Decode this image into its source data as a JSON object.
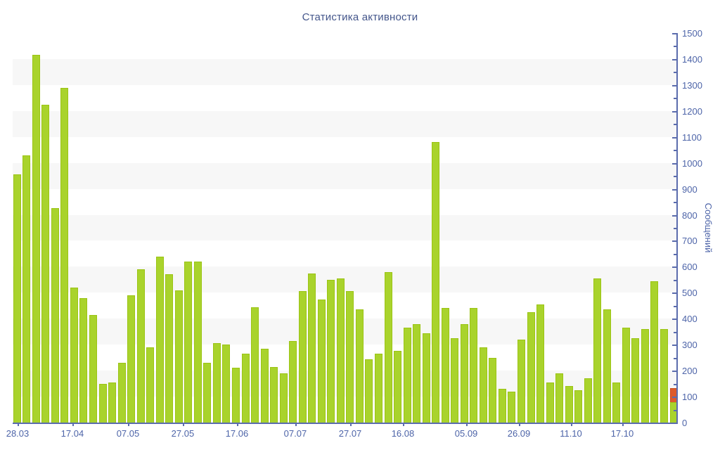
{
  "page": {
    "title": "Статистика активности"
  },
  "chart_data": {
    "type": "bar",
    "title": "Статистика активности",
    "ylabel": "Сообщений",
    "xlabel": "",
    "ylim": [
      0,
      1500
    ],
    "y_tick_step": 100,
    "y_minor_tick_step": 50,
    "legend_position": "none",
    "grid": "alternating horizontal gray bands each 100 units ([100-200],[300-400]...[1300-1400])",
    "x_ticks": [
      {
        "label": "28.03",
        "f": 0.0074
      },
      {
        "label": "17.04",
        "f": 0.09
      },
      {
        "label": "07.05",
        "f": 0.1737
      },
      {
        "label": "27.05",
        "f": 0.2563
      },
      {
        "label": "17.06",
        "f": 0.3379
      },
      {
        "label": "07.07",
        "f": 0.4258
      },
      {
        "label": "27.07",
        "f": 0.5085
      },
      {
        "label": "16.08",
        "f": 0.5879
      },
      {
        "label": "05.09",
        "f": 0.6833
      },
      {
        "label": "26.09",
        "f": 0.7627
      },
      {
        "label": "11.10",
        "f": 0.8411
      },
      {
        "label": "17.10",
        "f": 0.9184
      }
    ],
    "bar_values": [
      955,
      1030,
      1415,
      1225,
      825,
      1290,
      520,
      480,
      415,
      150,
      155,
      230,
      490,
      590,
      290,
      640,
      570,
      510,
      620,
      620,
      230,
      305,
      300,
      210,
      265,
      445,
      285,
      215,
      190,
      315,
      505,
      575,
      475,
      550,
      555,
      505,
      435,
      245,
      265,
      580,
      275,
      365,
      380,
      345,
      1080,
      440,
      325,
      380,
      440,
      290,
      250,
      130,
      120,
      320,
      425,
      455,
      155,
      190,
      140,
      125,
      170,
      555,
      435,
      155,
      365,
      325,
      360,
      545,
      360,
      78
    ],
    "overlay_segment": {
      "bar_index": 69,
      "value": 55
    },
    "colors": {
      "bar": "#a9d32c",
      "bar_border": "#9bc414",
      "overlay": "#dd5a2b",
      "overlay_border": "#c94d1f",
      "axis": "#5b6cad",
      "tick_label": "#4d64a8",
      "title": "#44568b",
      "band": "#f7f7f7",
      "background": "#ffffff"
    }
  }
}
